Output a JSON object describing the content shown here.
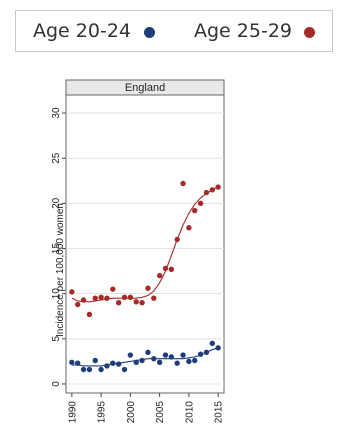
{
  "legend": {
    "items": [
      {
        "label": "Age 20-24",
        "color": "#1f3d7a"
      },
      {
        "label": "Age 25-29",
        "color": "#a52a2a"
      }
    ]
  },
  "chart_data": {
    "type": "scatter",
    "title": "England",
    "xlabel": "",
    "ylabel": "Incidence per 100,000 women",
    "xlim": [
      1989,
      2016
    ],
    "ylim": [
      -1,
      32
    ],
    "xticks": [
      1990,
      1995,
      2000,
      2005,
      2010,
      2015
    ],
    "yticks": [
      0,
      5,
      10,
      15,
      20,
      25,
      30
    ],
    "grid": true,
    "legend_position": "top",
    "fitted_lines": true,
    "series": [
      {
        "name": "Age 20-24",
        "color": "#1f3d7a",
        "x": [
          1990,
          1991,
          1992,
          1993,
          1994,
          1995,
          1996,
          1997,
          1998,
          1999,
          2000,
          2001,
          2002,
          2003,
          2004,
          2005,
          2006,
          2007,
          2008,
          2009,
          2010,
          2011,
          2012,
          2013,
          2014,
          2015
        ],
        "y": [
          2.4,
          2.3,
          1.6,
          1.6,
          2.6,
          1.6,
          2.0,
          2.3,
          2.2,
          1.6,
          3.2,
          2.4,
          2.6,
          3.5,
          2.8,
          2.4,
          3.2,
          3.0,
          2.3,
          3.2,
          2.5,
          2.6,
          3.3,
          3.5,
          4.5,
          4.0
        ],
        "fit": [
          2.1,
          2.1,
          2.0,
          2.0,
          2.0,
          2.0,
          2.1,
          2.2,
          2.3,
          2.4,
          2.5,
          2.6,
          2.7,
          2.8,
          2.8,
          2.8,
          2.8,
          2.8,
          2.8,
          2.8,
          2.9,
          3.0,
          3.2,
          3.5,
          3.8,
          4.0
        ]
      },
      {
        "name": "Age 25-29",
        "color": "#a52a2a",
        "x": [
          1990,
          1991,
          1992,
          1993,
          1994,
          1995,
          1996,
          1997,
          1998,
          1999,
          2000,
          2001,
          2002,
          2003,
          2004,
          2005,
          2006,
          2007,
          2008,
          2009,
          2010,
          2011,
          2012,
          2013,
          2014,
          2015
        ],
        "y": [
          10.2,
          8.8,
          9.3,
          7.7,
          9.5,
          9.6,
          9.5,
          10.5,
          9.0,
          9.6,
          9.6,
          9.1,
          9.0,
          10.6,
          9.5,
          12.0,
          12.8,
          12.7,
          16.0,
          22.2,
          17.3,
          19.2,
          20.0,
          21.2,
          21.5,
          21.8
        ],
        "fit": [
          9.5,
          9.2,
          9.1,
          9.1,
          9.2,
          9.3,
          9.4,
          9.5,
          9.5,
          9.5,
          9.5,
          9.5,
          9.6,
          9.8,
          10.3,
          11.2,
          12.5,
          14.2,
          16.0,
          17.6,
          18.9,
          19.9,
          20.6,
          21.1,
          21.5,
          21.8
        ]
      }
    ]
  }
}
